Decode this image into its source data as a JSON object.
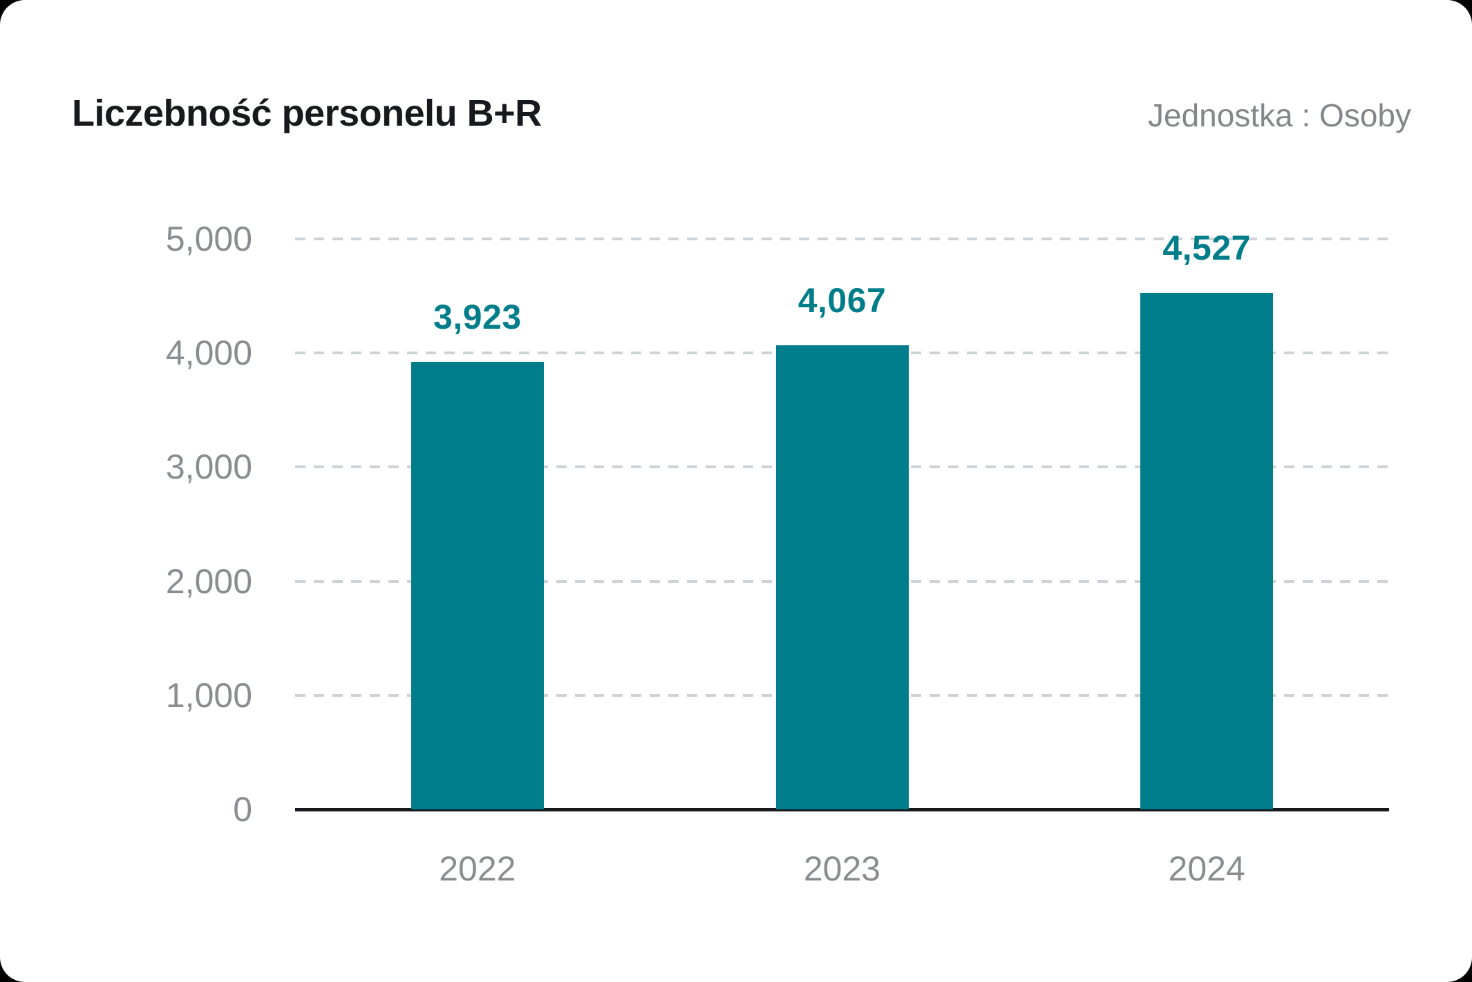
{
  "header": {
    "title": "Liczebność personelu B+R",
    "unit_label": "Jednostka : Osoby"
  },
  "chart_data": {
    "type": "bar",
    "title": "Liczebność personelu B+R",
    "subtitle": "Jednostka : Osoby",
    "categories": [
      "2022",
      "2023",
      "2024"
    ],
    "values": [
      3923,
      4067,
      4527
    ],
    "value_labels": [
      "3,923",
      "4,067",
      "4,527"
    ],
    "xlabel": "",
    "ylabel": "",
    "ylim": [
      0,
      5000
    ],
    "yticks": [
      0,
      1000,
      2000,
      3000,
      4000,
      5000
    ],
    "ytick_labels": [
      "0",
      "1,000",
      "2,000",
      "3,000",
      "4,000",
      "5,000"
    ],
    "grid": "horizontal-dashed",
    "legend_position": "none",
    "colors": {
      "bar": "#007d8a",
      "value_label": "#007d8a",
      "axis_text": "#8a8d8f",
      "gridline": "#cdd2d6",
      "axis_line": "#17191c",
      "title": "#17191c",
      "unit_text": "#84878a",
      "background": "#ffffff"
    }
  }
}
